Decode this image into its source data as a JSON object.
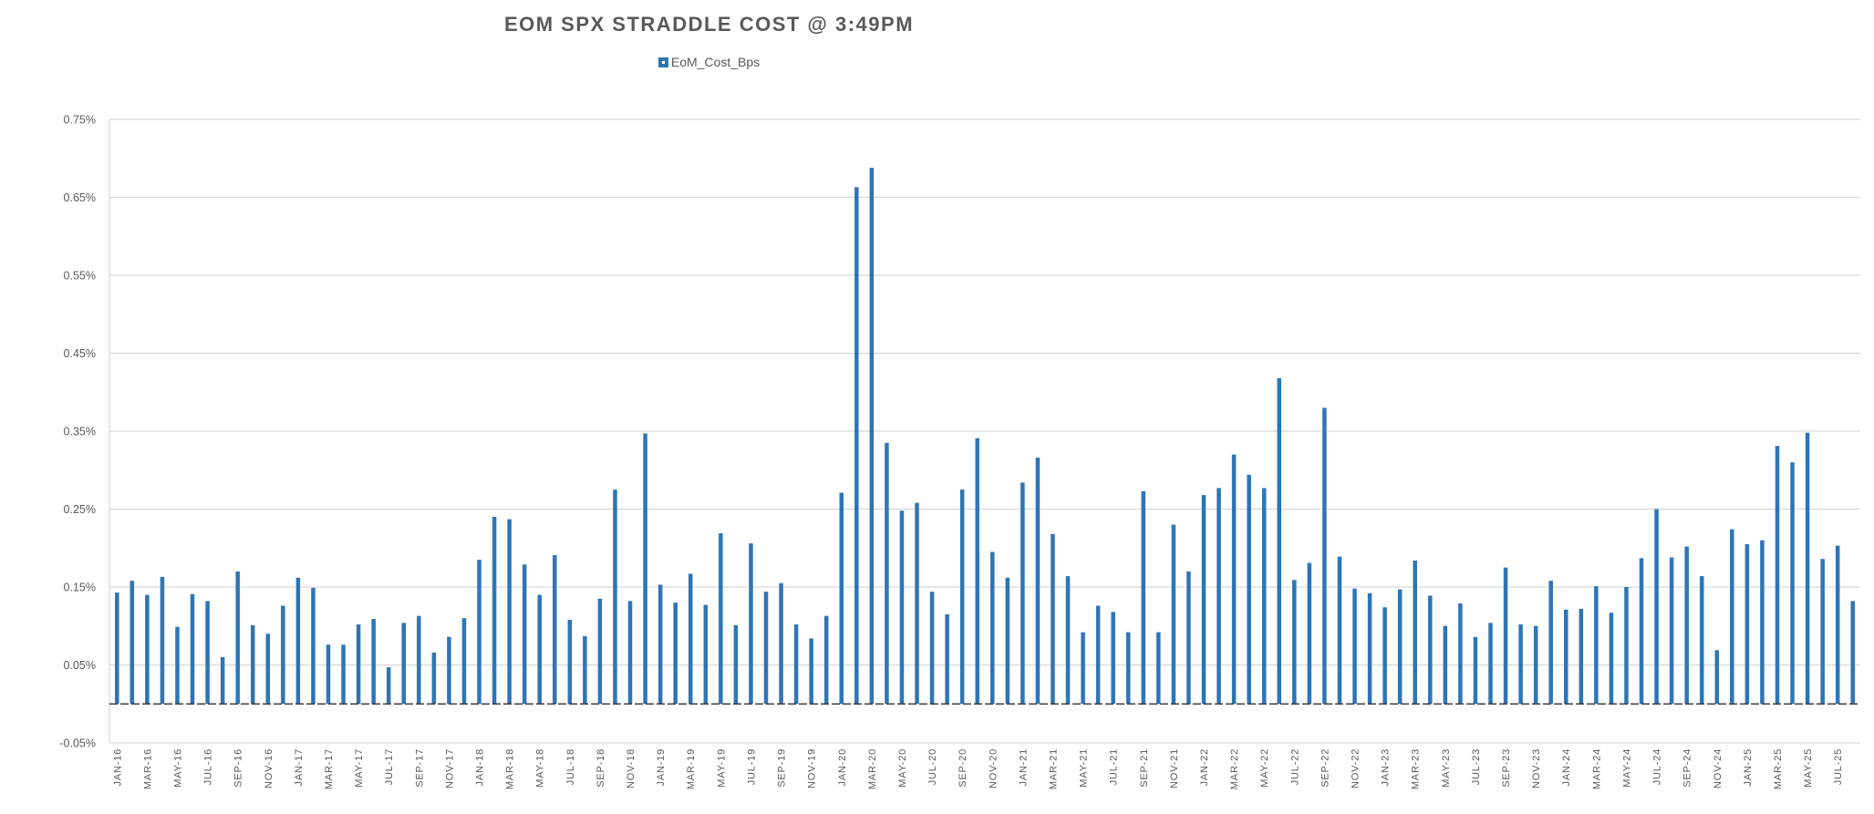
{
  "chart_data": {
    "type": "bar",
    "title": "EOM SPX STRADDLE COST @ 3:49PM",
    "series": [
      {
        "name": "EoM_Cost_Bps",
        "color": "#2e75b6",
        "values": [
          0.143,
          0.158,
          0.14,
          0.163,
          0.099,
          0.141,
          0.132,
          0.06,
          0.17,
          0.101,
          0.09,
          0.126,
          0.162,
          0.149,
          0.076,
          0.076,
          0.102,
          0.109,
          0.047,
          0.104,
          0.113,
          0.066,
          0.086,
          0.11,
          0.185,
          0.24,
          0.237,
          0.179,
          0.14,
          0.191,
          0.108,
          0.087,
          0.135,
          0.275,
          0.132,
          0.347,
          0.153,
          0.13,
          0.167,
          0.127,
          0.219,
          0.101,
          0.206,
          0.144,
          0.155,
          0.102,
          0.084,
          0.113,
          0.271,
          0.663,
          0.688,
          0.335,
          0.248,
          0.258,
          0.144,
          0.115,
          0.275,
          0.341,
          0.195,
          0.162,
          0.284,
          0.316,
          0.218,
          0.164,
          0.092,
          0.126,
          0.118,
          0.092,
          0.273,
          0.092,
          0.23,
          0.17,
          0.268,
          0.277,
          0.32,
          0.294,
          0.277,
          0.418,
          0.159,
          0.181,
          0.38,
          0.189,
          0.148,
          0.142,
          0.124,
          0.147,
          0.184,
          0.139,
          0.1,
          0.129,
          0.086,
          0.104,
          0.175,
          0.102,
          0.1,
          0.158,
          0.121,
          0.122,
          0.151,
          0.117,
          0.15,
          0.187,
          0.25,
          0.188,
          0.202,
          0.164,
          0.069,
          0.224,
          0.205,
          0.21,
          0.331,
          0.31,
          0.348,
          0.186,
          0.203,
          0.132
        ]
      }
    ],
    "x_start": "JAN-16",
    "x_tick_labels": [
      "JAN-16",
      "MAR-16",
      "MAY-16",
      "JUL-16",
      "SEP-16",
      "NOV-16",
      "JAN-17",
      "MAR-17",
      "MAY-17",
      "JUL-17",
      "SEP-17",
      "NOV-17",
      "JAN-18",
      "MAR-18",
      "MAY-18",
      "JUL-18",
      "SEP-18",
      "NOV-18",
      "JAN-19",
      "MAR-19",
      "MAY-19",
      "JUL-19",
      "SEP-19",
      "NOV-19",
      "JAN-20",
      "MAR-20",
      "MAY-20",
      "JUL-20",
      "SEP-20",
      "NOV-20",
      "JAN-21",
      "MAR-21",
      "MAY-21",
      "JUL-21",
      "SEP-21",
      "NOV-21",
      "JAN-22",
      "MAR-22",
      "MAY-22",
      "JUL-22",
      "SEP-22",
      "NOV-22",
      "JAN-23",
      "MAR-23",
      "MAY-23",
      "JUL-23",
      "SEP-23",
      "NOV-23",
      "JAN-24",
      "MAR-24",
      "MAY-24",
      "JUL-24",
      "SEP-24",
      "NOV-24",
      "JAN-25",
      "MAR-25",
      "MAY-25",
      "JUL-25"
    ],
    "y_tick_labels": [
      "0.75%",
      "0.65%",
      "0.55%",
      "0.45%",
      "0.35%",
      "0.25%",
      "0.15%",
      "0.05%",
      "-0.05%"
    ],
    "y_ticks": [
      0.75,
      0.65,
      0.55,
      0.45,
      0.35,
      0.25,
      0.15,
      0.05,
      -0.05
    ],
    "ylim": [
      -0.05,
      0.75
    ],
    "y_unit": "%",
    "xlabel": "",
    "ylabel": "",
    "grid": true,
    "legend_position": "top-center"
  }
}
